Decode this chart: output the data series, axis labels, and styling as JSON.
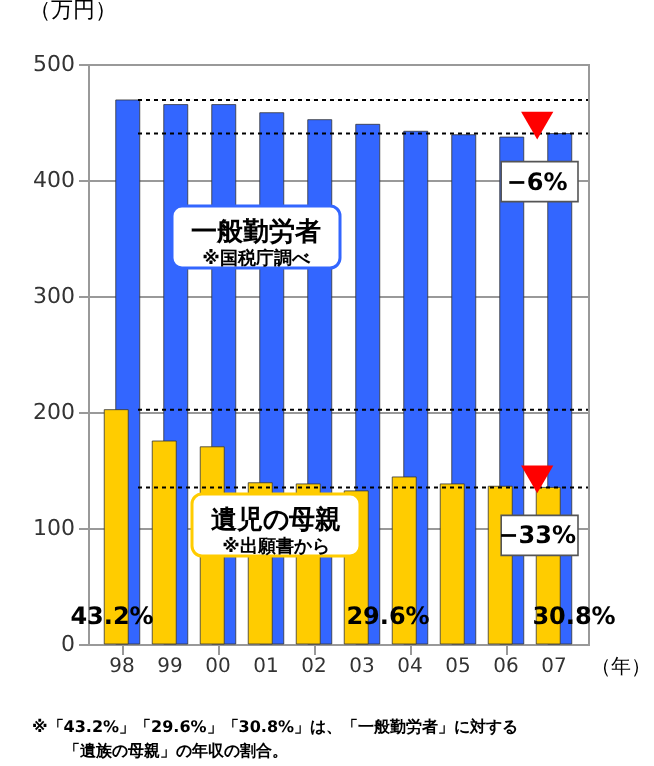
{
  "chart_data": {
    "type": "bar",
    "ylabel": "（万円）",
    "xlabel": "（年）",
    "categories": [
      "98",
      "99",
      "00",
      "01",
      "02",
      "03",
      "04",
      "05",
      "06",
      "07"
    ],
    "series": [
      {
        "name": "一般勤労者",
        "color": "#3366ff",
        "values": [
          469,
          465,
          465,
          458,
          452,
          448,
          442,
          439,
          437,
          440
        ]
      },
      {
        "name": "遺児の母親",
        "color": "#ffcc00",
        "values": [
          202,
          175,
          170,
          139,
          138,
          132,
          144,
          138,
          136,
          135
        ]
      }
    ],
    "ylim": [
      0,
      500
    ],
    "yticks": [
      0,
      100,
      200,
      300,
      400,
      500
    ],
    "grid": "y",
    "ref_lines": [
      {
        "axis": "y",
        "value": 469,
        "line_style": "dotted",
        "color": "#000000"
      },
      {
        "axis": "y",
        "value": 440,
        "line_style": "dotted",
        "color": "#000000"
      },
      {
        "axis": "y",
        "value": 202,
        "line_style": "dotted",
        "color": "#000000"
      },
      {
        "axis": "y",
        "value": 135,
        "line_style": "dotted",
        "color": "#000000"
      }
    ],
    "annotations": [
      "※国税庁調べ",
      "※出願書から",
      {
        "text": "−6%",
        "x": "07",
        "y": 440
      },
      {
        "text": "−33%",
        "x": "07",
        "y": 135
      },
      "43.2%",
      "29.6%",
      "30.8%",
      "※「43.2%」「29.6%」「30.8%」は、「一般勤労者」に対する",
      "「遺族の母親」の年収の割合。"
    ]
  }
}
